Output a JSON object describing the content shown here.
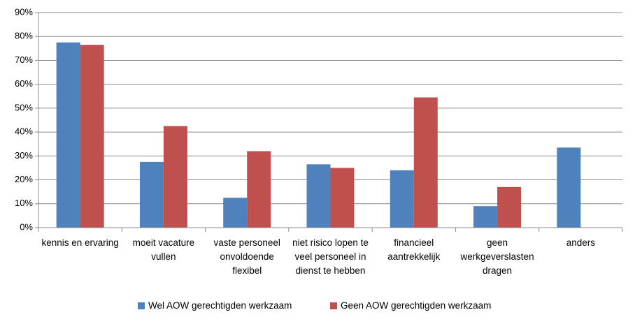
{
  "chart_data": {
    "type": "bar",
    "categories": [
      "kennis en ervaring",
      "moeit vacature vullen",
      "vaste personeel onvoldoende flexibel",
      "niet risico lopen te veel personeel in dienst te hebben",
      "financieel aantrekkelijk",
      "geen werkgeverslasten dragen",
      "anders"
    ],
    "series": [
      {
        "name": "Wel AOW gerechtigden werkzaam",
        "color": "#4f81bd",
        "values": [
          77.5,
          27.5,
          12.5,
          26.5,
          24,
          9,
          33.5
        ]
      },
      {
        "name": "Geen AOW gerechtigden werkzaam",
        "color": "#c0504d",
        "values": [
          76.5,
          42.5,
          32,
          25,
          54.5,
          17,
          0
        ]
      }
    ],
    "ylim": [
      0,
      90
    ],
    "yticks": [
      {
        "value": 0,
        "label": "0%"
      },
      {
        "value": 10,
        "label": "10%"
      },
      {
        "value": 20,
        "label": "20%"
      },
      {
        "value": 30,
        "label": "30%"
      },
      {
        "value": 40,
        "label": "40%"
      },
      {
        "value": 50,
        "label": "50%"
      },
      {
        "value": 60,
        "label": "60%"
      },
      {
        "value": 70,
        "label": "70%"
      },
      {
        "value": 80,
        "label": "80%"
      },
      {
        "value": 90,
        "label": "90%"
      }
    ],
    "grid": true
  }
}
